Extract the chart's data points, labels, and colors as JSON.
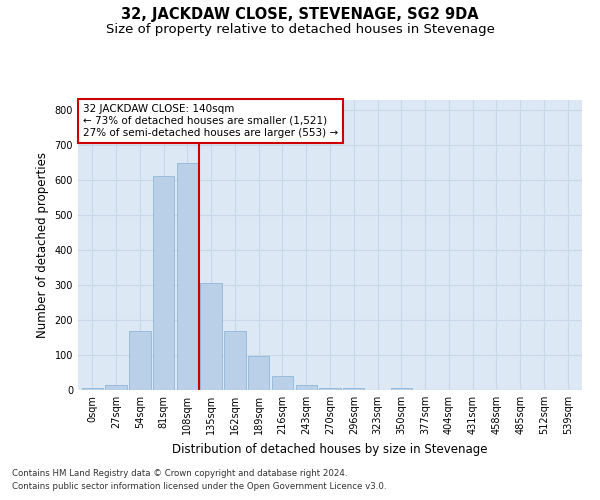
{
  "title": "32, JACKDAW CLOSE, STEVENAGE, SG2 9DA",
  "subtitle": "Size of property relative to detached houses in Stevenage",
  "xlabel": "Distribution of detached houses by size in Stevenage",
  "ylabel": "Number of detached properties",
  "categories": [
    "0sqm",
    "27sqm",
    "54sqm",
    "81sqm",
    "108sqm",
    "135sqm",
    "162sqm",
    "189sqm",
    "216sqm",
    "243sqm",
    "270sqm",
    "296sqm",
    "323sqm",
    "350sqm",
    "377sqm",
    "404sqm",
    "431sqm",
    "458sqm",
    "485sqm",
    "512sqm",
    "539sqm"
  ],
  "bar_heights": [
    7,
    14,
    170,
    612,
    650,
    307,
    170,
    98,
    40,
    15,
    7,
    5,
    0,
    5,
    0,
    0,
    0,
    0,
    0,
    0,
    0
  ],
  "bar_color": "#bad0e8",
  "bar_edge_color": "#90b8d8",
  "vline_x_index": 4.5,
  "vline_color": "#cc0000",
  "annotation_line1": "32 JACKDAW CLOSE: 140sqm",
  "annotation_line2": "← 73% of detached houses are smaller (1,521)",
  "annotation_line3": "27% of semi-detached houses are larger (553) →",
  "annotation_box_color": "#ffffff",
  "annotation_box_edge": "#cc0000",
  "ylim": [
    0,
    830
  ],
  "yticks": [
    0,
    100,
    200,
    300,
    400,
    500,
    600,
    700,
    800
  ],
  "grid_color": "#c8d8e8",
  "bg_color": "#dce8f4",
  "footer_line1": "Contains HM Land Registry data © Crown copyright and database right 2024.",
  "footer_line2": "Contains public sector information licensed under the Open Government Licence v3.0.",
  "title_fontsize": 10.5,
  "subtitle_fontsize": 9.5,
  "tick_fontsize": 7,
  "ylabel_fontsize": 8.5,
  "xlabel_fontsize": 8.5,
  "annotation_fontsize": 7.5
}
